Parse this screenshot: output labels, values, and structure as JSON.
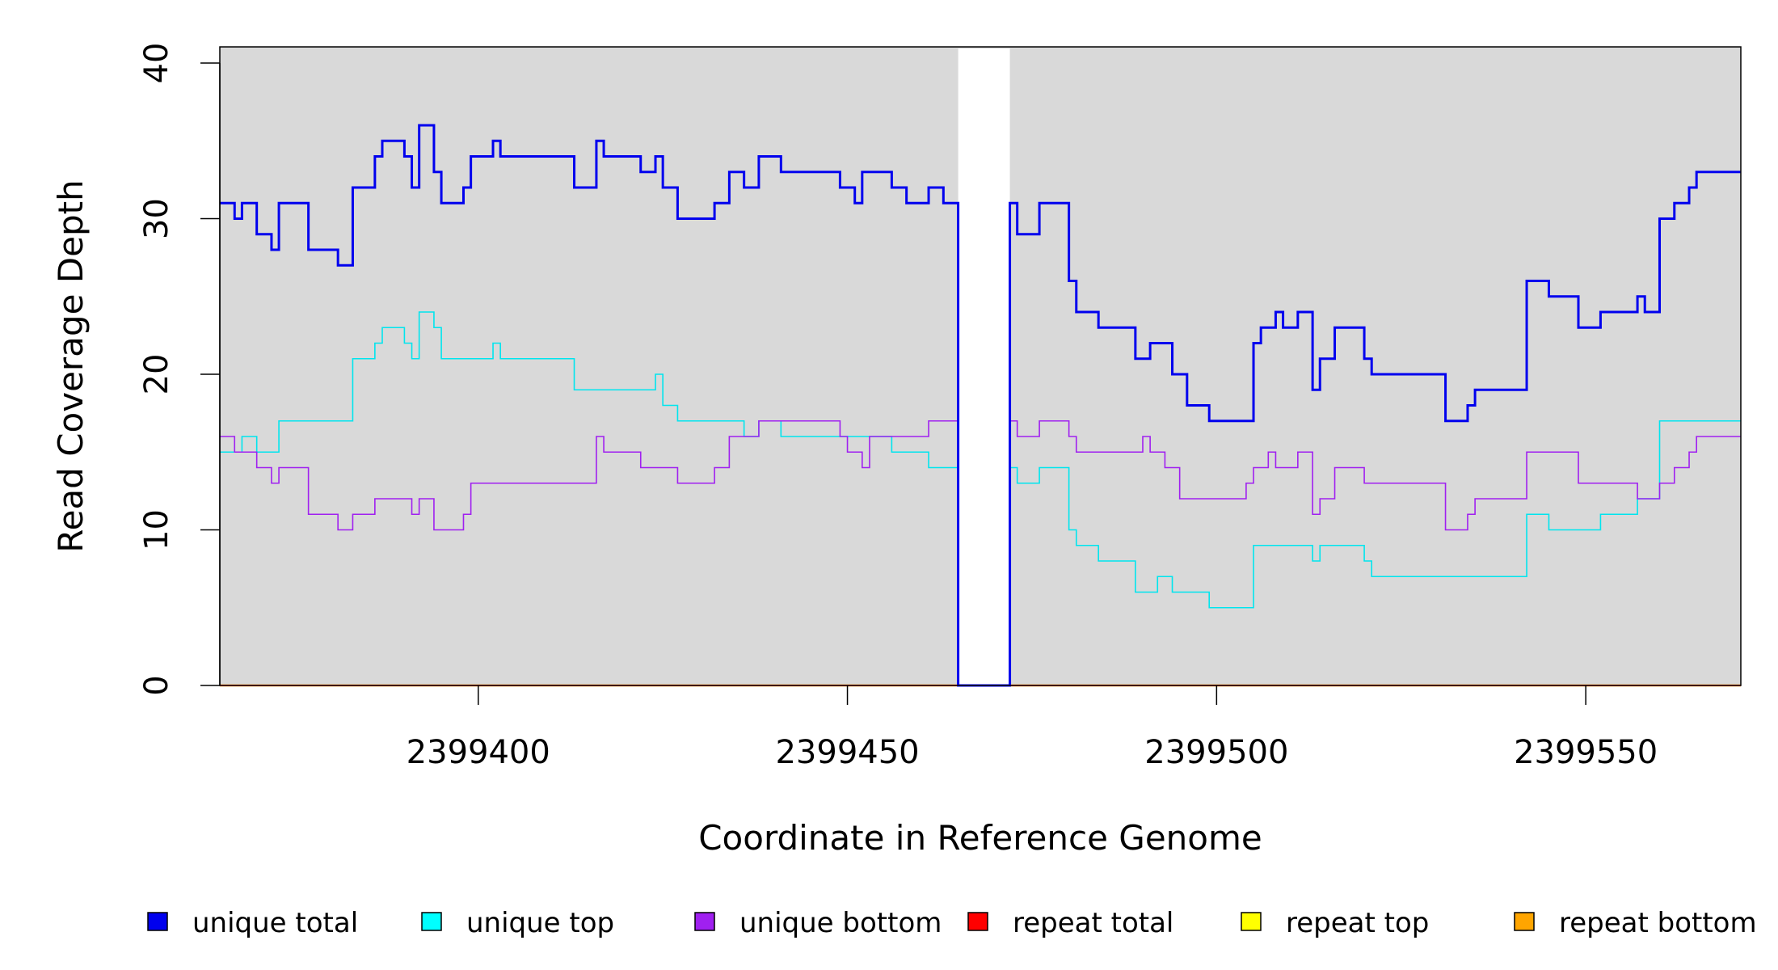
{
  "chart_data": {
    "type": "line",
    "step": true,
    "xlabel": "Coordinate in Reference Genome",
    "ylabel": "Read Coverage Depth",
    "xlim": [
      2399365,
      2399571
    ],
    "ylim": [
      0,
      41
    ],
    "xticks": [
      2399400,
      2399450,
      2399500,
      2399550
    ],
    "xtick_labels": [
      "2399400",
      "2399450",
      "2399500",
      "2399550"
    ],
    "yticks": [
      0,
      10,
      20,
      30,
      40
    ],
    "ytick_labels": [
      "0",
      "10",
      "20",
      "30",
      "40"
    ],
    "background": "#d9d9d9",
    "gap_region": [
      2399465,
      2399472
    ],
    "gap_color": "#ffffff",
    "series": [
      {
        "name": "unique total",
        "color": "#0000ee",
        "width": 3,
        "points": [
          [
            2399365,
            31
          ],
          [
            2399367,
            30
          ],
          [
            2399368,
            31
          ],
          [
            2399370,
            29
          ],
          [
            2399372,
            28
          ],
          [
            2399373,
            31
          ],
          [
            2399377,
            28
          ],
          [
            2399381,
            27
          ],
          [
            2399383,
            32
          ],
          [
            2399386,
            34
          ],
          [
            2399387,
            35
          ],
          [
            2399390,
            34
          ],
          [
            2399391,
            32
          ],
          [
            2399392,
            36
          ],
          [
            2399394,
            33
          ],
          [
            2399395,
            31
          ],
          [
            2399398,
            32
          ],
          [
            2399399,
            34
          ],
          [
            2399402,
            35
          ],
          [
            2399403,
            34
          ],
          [
            2399413,
            32
          ],
          [
            2399416,
            35
          ],
          [
            2399417,
            34
          ],
          [
            2399422,
            33
          ],
          [
            2399424,
            34
          ],
          [
            2399425,
            32
          ],
          [
            2399427,
            30
          ],
          [
            2399432,
            31
          ],
          [
            2399434,
            33
          ],
          [
            2399436,
            32
          ],
          [
            2399438,
            34
          ],
          [
            2399441,
            33
          ],
          [
            2399449,
            32
          ],
          [
            2399451,
            31
          ],
          [
            2399452,
            33
          ],
          [
            2399456,
            32
          ],
          [
            2399458,
            31
          ],
          [
            2399461,
            32
          ],
          [
            2399463,
            31
          ],
          [
            2399465,
            0
          ],
          [
            2399472,
            31
          ],
          [
            2399473,
            29
          ],
          [
            2399476,
            31
          ],
          [
            2399480,
            26
          ],
          [
            2399481,
            24
          ],
          [
            2399484,
            23
          ],
          [
            2399489,
            21
          ],
          [
            2399491,
            22
          ],
          [
            2399494,
            20
          ],
          [
            2399496,
            18
          ],
          [
            2399499,
            17
          ],
          [
            2399505,
            22
          ],
          [
            2399506,
            23
          ],
          [
            2399508,
            24
          ],
          [
            2399509,
            23
          ],
          [
            2399511,
            24
          ],
          [
            2399513,
            19
          ],
          [
            2399514,
            21
          ],
          [
            2399516,
            23
          ],
          [
            2399520,
            21
          ],
          [
            2399521,
            20
          ],
          [
            2399531,
            17
          ],
          [
            2399534,
            18
          ],
          [
            2399535,
            19
          ],
          [
            2399542,
            26
          ],
          [
            2399545,
            25
          ],
          [
            2399549,
            23
          ],
          [
            2399552,
            24
          ],
          [
            2399557,
            25
          ],
          [
            2399558,
            24
          ],
          [
            2399560,
            30
          ],
          [
            2399562,
            31
          ],
          [
            2399564,
            32
          ],
          [
            2399565,
            33
          ],
          [
            2399571,
            33
          ]
        ]
      },
      {
        "name": "unique top",
        "color": "#00e5ee",
        "width": 1.6,
        "points": [
          [
            2399365,
            15
          ],
          [
            2399368,
            16
          ],
          [
            2399370,
            15
          ],
          [
            2399373,
            17
          ],
          [
            2399383,
            21
          ],
          [
            2399386,
            22
          ],
          [
            2399387,
            23
          ],
          [
            2399390,
            22
          ],
          [
            2399391,
            21
          ],
          [
            2399392,
            24
          ],
          [
            2399394,
            23
          ],
          [
            2399395,
            21
          ],
          [
            2399402,
            22
          ],
          [
            2399403,
            21
          ],
          [
            2399413,
            19
          ],
          [
            2399424,
            20
          ],
          [
            2399425,
            18
          ],
          [
            2399427,
            17
          ],
          [
            2399436,
            16
          ],
          [
            2399438,
            17
          ],
          [
            2399441,
            16
          ],
          [
            2399456,
            15
          ],
          [
            2399461,
            14
          ],
          [
            2399465,
            0
          ],
          [
            2399472,
            14
          ],
          [
            2399473,
            13
          ],
          [
            2399476,
            14
          ],
          [
            2399480,
            10
          ],
          [
            2399481,
            9
          ],
          [
            2399484,
            8
          ],
          [
            2399489,
            6
          ],
          [
            2399492,
            7
          ],
          [
            2399494,
            6
          ],
          [
            2399499,
            5
          ],
          [
            2399505,
            9
          ],
          [
            2399513,
            8
          ],
          [
            2399514,
            9
          ],
          [
            2399520,
            8
          ],
          [
            2399521,
            7
          ],
          [
            2399542,
            11
          ],
          [
            2399545,
            10
          ],
          [
            2399552,
            11
          ],
          [
            2399557,
            12
          ],
          [
            2399560,
            17
          ],
          [
            2399571,
            17
          ]
        ]
      },
      {
        "name": "unique bottom",
        "color": "#a020f0",
        "width": 1.6,
        "points": [
          [
            2399365,
            16
          ],
          [
            2399367,
            15
          ],
          [
            2399370,
            14
          ],
          [
            2399372,
            13
          ],
          [
            2399373,
            14
          ],
          [
            2399377,
            11
          ],
          [
            2399381,
            10
          ],
          [
            2399383,
            11
          ],
          [
            2399386,
            12
          ],
          [
            2399391,
            11
          ],
          [
            2399392,
            12
          ],
          [
            2399394,
            10
          ],
          [
            2399398,
            11
          ],
          [
            2399399,
            13
          ],
          [
            2399416,
            16
          ],
          [
            2399417,
            15
          ],
          [
            2399422,
            14
          ],
          [
            2399427,
            13
          ],
          [
            2399432,
            14
          ],
          [
            2399434,
            16
          ],
          [
            2399438,
            17
          ],
          [
            2399449,
            16
          ],
          [
            2399450,
            15
          ],
          [
            2399452,
            14
          ],
          [
            2399453,
            16
          ],
          [
            2399461,
            17
          ],
          [
            2399465,
            0
          ],
          [
            2399472,
            17
          ],
          [
            2399473,
            16
          ],
          [
            2399476,
            17
          ],
          [
            2399480,
            16
          ],
          [
            2399481,
            15
          ],
          [
            2399490,
            16
          ],
          [
            2399491,
            15
          ],
          [
            2399493,
            14
          ],
          [
            2399495,
            12
          ],
          [
            2399504,
            13
          ],
          [
            2399505,
            14
          ],
          [
            2399507,
            15
          ],
          [
            2399508,
            14
          ],
          [
            2399511,
            15
          ],
          [
            2399513,
            11
          ],
          [
            2399514,
            12
          ],
          [
            2399516,
            14
          ],
          [
            2399520,
            13
          ],
          [
            2399531,
            10
          ],
          [
            2399534,
            11
          ],
          [
            2399535,
            12
          ],
          [
            2399542,
            15
          ],
          [
            2399549,
            13
          ],
          [
            2399557,
            12
          ],
          [
            2399560,
            13
          ],
          [
            2399562,
            14
          ],
          [
            2399564,
            15
          ],
          [
            2399565,
            16
          ],
          [
            2399571,
            16
          ]
        ]
      },
      {
        "name": "repeat total",
        "color": "#ff0000",
        "width": 2,
        "points": [
          [
            2399365,
            0
          ],
          [
            2399571,
            0
          ]
        ]
      },
      {
        "name": "repeat top",
        "color": "#ffff00",
        "width": 2,
        "points": [
          [
            2399365,
            0
          ],
          [
            2399571,
            0
          ]
        ]
      },
      {
        "name": "repeat bottom",
        "color": "#ffa500",
        "width": 2.5,
        "points": [
          [
            2399365,
            0
          ],
          [
            2399571,
            0
          ]
        ]
      }
    ],
    "legend": [
      {
        "label": "unique total",
        "color": "#0000ee"
      },
      {
        "label": "unique top",
        "color": "#00ffff"
      },
      {
        "label": "unique bottom",
        "color": "#a020f0"
      },
      {
        "label": "repeat total",
        "color": "#ff0000"
      },
      {
        "label": "repeat top",
        "color": "#ffff00"
      },
      {
        "label": "repeat bottom",
        "color": "#ffa500"
      }
    ],
    "legend_position": "bottom"
  }
}
